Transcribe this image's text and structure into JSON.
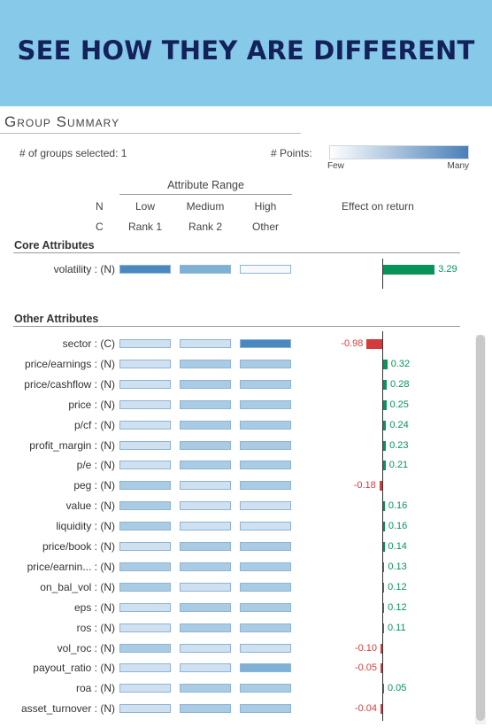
{
  "banner": {
    "title": "SEE HOW THEY ARE DIFFERENT"
  },
  "panel": {
    "title": "Group Summary"
  },
  "header": {
    "groups_selected": "# of groups selected: 1",
    "points_label": "# Points:",
    "legend_low": "Few",
    "legend_high": "Many",
    "attribute_range": "Attribute Range",
    "n_label": "N",
    "c_label": "C",
    "n_columns": [
      "Low",
      "Medium",
      "High"
    ],
    "c_columns": [
      "Rank 1",
      "Rank 2",
      "Other"
    ],
    "effect_label": "Effect on return"
  },
  "core": {
    "title": "Core Attributes",
    "rows": [
      {
        "label": "volatility : (N)",
        "cells": [
          4,
          3,
          0
        ],
        "effect": 3.29,
        "effect_label": "3.29"
      }
    ]
  },
  "other": {
    "title": "Other Attributes",
    "rows": [
      {
        "label": "sector : (C)",
        "cells": [
          1,
          1,
          4
        ],
        "effect": -0.98,
        "effect_label": "-0.98"
      },
      {
        "label": "price/earnings : (N)",
        "cells": [
          1,
          2,
          2
        ],
        "effect": 0.32,
        "effect_label": "0.32"
      },
      {
        "label": "price/cashflow : (N)",
        "cells": [
          1,
          2,
          2
        ],
        "effect": 0.28,
        "effect_label": "0.28"
      },
      {
        "label": "price : (N)",
        "cells": [
          1,
          2,
          2
        ],
        "effect": 0.25,
        "effect_label": "0.25"
      },
      {
        "label": "p/cf : (N)",
        "cells": [
          1,
          2,
          2
        ],
        "effect": 0.24,
        "effect_label": "0.24"
      },
      {
        "label": "profit_margin : (N)",
        "cells": [
          1,
          2,
          2
        ],
        "effect": 0.23,
        "effect_label": "0.23"
      },
      {
        "label": "p/e : (N)",
        "cells": [
          1,
          2,
          2
        ],
        "effect": 0.21,
        "effect_label": "0.21"
      },
      {
        "label": "peg : (N)",
        "cells": [
          2,
          1,
          2
        ],
        "effect": -0.18,
        "effect_label": "-0.18"
      },
      {
        "label": "value : (N)",
        "cells": [
          2,
          1,
          1
        ],
        "effect": 0.16,
        "effect_label": "0.16"
      },
      {
        "label": "liquidity : (N)",
        "cells": [
          2,
          1,
          1
        ],
        "effect": 0.16,
        "effect_label": "0.16"
      },
      {
        "label": "price/book : (N)",
        "cells": [
          1,
          2,
          2
        ],
        "effect": 0.14,
        "effect_label": "0.14"
      },
      {
        "label": "price/earnin... : (N)",
        "cells": [
          2,
          2,
          2
        ],
        "effect": 0.13,
        "effect_label": "0.13"
      },
      {
        "label": "on_bal_vol : (N)",
        "cells": [
          2,
          1,
          2
        ],
        "effect": 0.12,
        "effect_label": "0.12"
      },
      {
        "label": "eps : (N)",
        "cells": [
          1,
          2,
          2
        ],
        "effect": 0.12,
        "effect_label": "0.12"
      },
      {
        "label": "ros : (N)",
        "cells": [
          1,
          2,
          2
        ],
        "effect": 0.11,
        "effect_label": "0.11"
      },
      {
        "label": "vol_roc : (N)",
        "cells": [
          2,
          1,
          1
        ],
        "effect": -0.1,
        "effect_label": "-0.10"
      },
      {
        "label": "payout_ratio : (N)",
        "cells": [
          1,
          1,
          3
        ],
        "effect": -0.05,
        "effect_label": "-0.05"
      },
      {
        "label": "roa : (N)",
        "cells": [
          1,
          2,
          2
        ],
        "effect": 0.05,
        "effect_label": "0.05"
      },
      {
        "label": "asset_turnover : (N)",
        "cells": [
          1,
          2,
          2
        ],
        "effect": -0.04,
        "effect_label": "-0.04"
      }
    ]
  },
  "colors": {
    "level0": "#f7fafd",
    "level1": "#cfe1f0",
    "level2": "#a9cbe4",
    "level3": "#7fb0d6",
    "level4": "#4a88c0",
    "positive": "#07935a",
    "negative": "#d43c3c"
  }
}
